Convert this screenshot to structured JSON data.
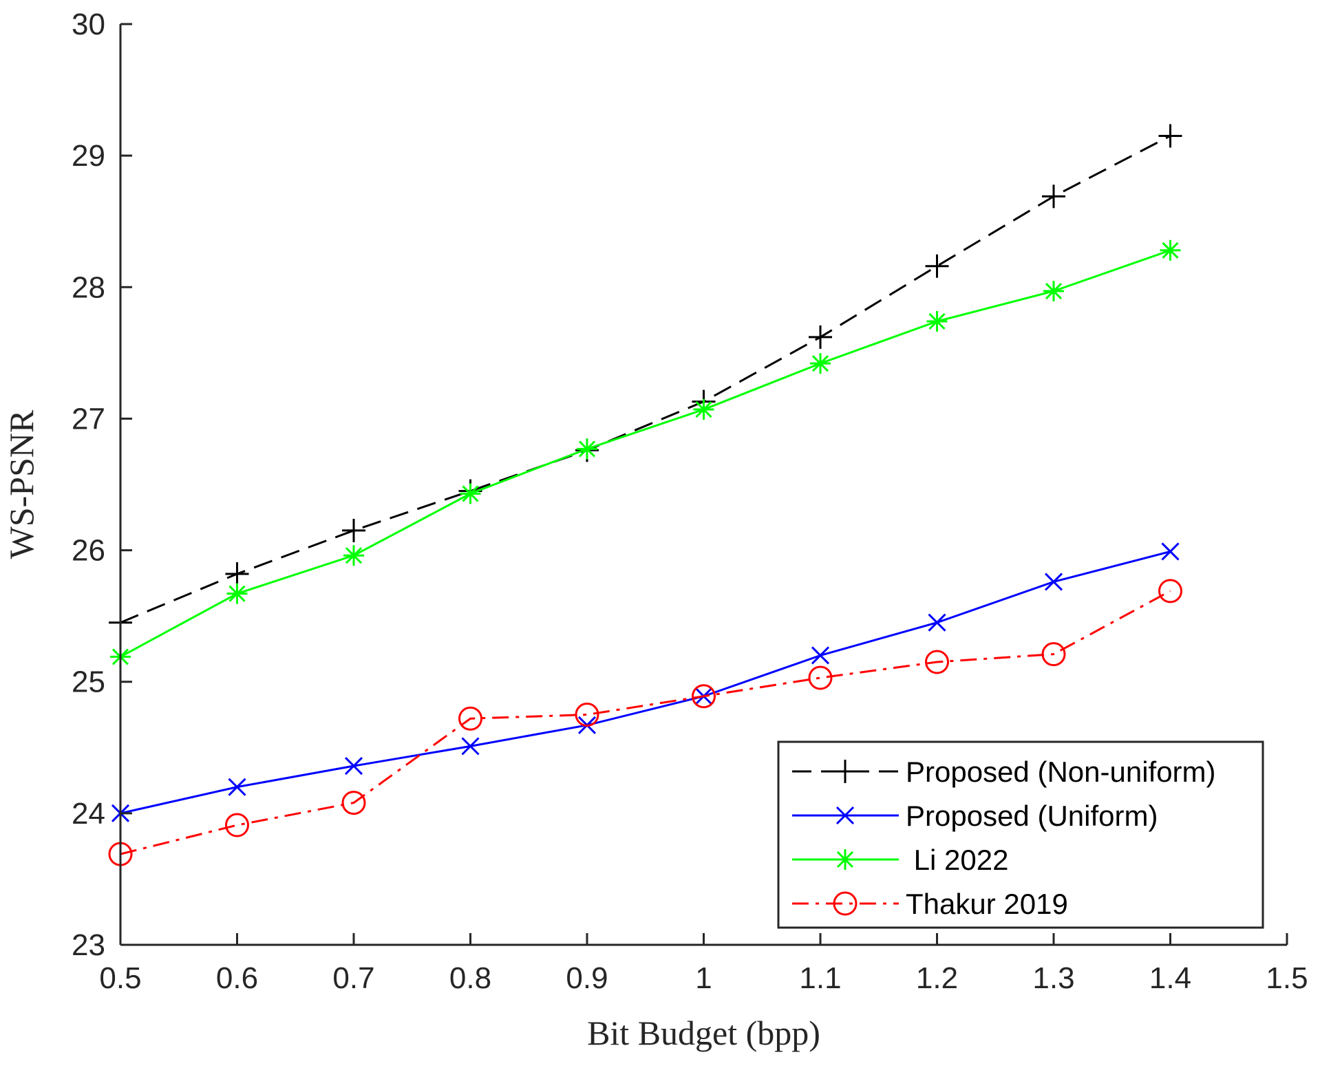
{
  "chart_data": {
    "type": "line",
    "title": "",
    "xlabel": "Bit Budget (bpp)",
    "ylabel": "WS-PSNR",
    "xlim": [
      0.5,
      1.5
    ],
    "ylim": [
      23,
      30
    ],
    "xticks": [
      0.5,
      0.6,
      0.7,
      0.8,
      0.9,
      1,
      1.1,
      1.2,
      1.3,
      1.4,
      1.5
    ],
    "xtick_labels": [
      "0.5",
      "0.6",
      "0.7",
      "0.8",
      "0.9",
      "1",
      "1.1",
      "1.2",
      "1.3",
      "1.4",
      "1.5"
    ],
    "yticks": [
      23,
      24,
      25,
      26,
      27,
      28,
      29,
      30
    ],
    "ytick_labels": [
      "23",
      "24",
      "25",
      "26",
      "27",
      "28",
      "29",
      "30"
    ],
    "grid": false,
    "legend_position": "bottom-right",
    "x": [
      0.5,
      0.6,
      0.7,
      0.8,
      0.9,
      1.0,
      1.1,
      1.2,
      1.3,
      1.4
    ],
    "series": [
      {
        "name": "Proposed (Non-uniform)",
        "color": "#000000",
        "line_style": "dashed",
        "marker": "plus",
        "values": [
          25.45,
          25.82,
          26.15,
          26.45,
          26.76,
          27.13,
          27.62,
          28.16,
          28.69,
          29.15
        ]
      },
      {
        "name": "Proposed (Uniform)",
        "color": "#0000ff",
        "line_style": "solid",
        "marker": "x",
        "values": [
          24.0,
          24.2,
          24.36,
          24.51,
          24.67,
          24.89,
          25.2,
          25.45,
          25.76,
          25.99
        ]
      },
      {
        "name": " Li 2022",
        "color": "#00ff00",
        "line_style": "solid",
        "marker": "asterisk",
        "values": [
          25.19,
          25.67,
          25.96,
          26.43,
          26.77,
          27.07,
          27.42,
          27.74,
          27.97,
          28.28
        ]
      },
      {
        "name": "Thakur 2019",
        "color": "#ff0000",
        "line_style": "dashdot",
        "marker": "circle",
        "values": [
          23.69,
          23.91,
          24.08,
          24.72,
          24.75,
          24.89,
          25.03,
          25.15,
          25.21,
          25.69
        ]
      }
    ]
  }
}
